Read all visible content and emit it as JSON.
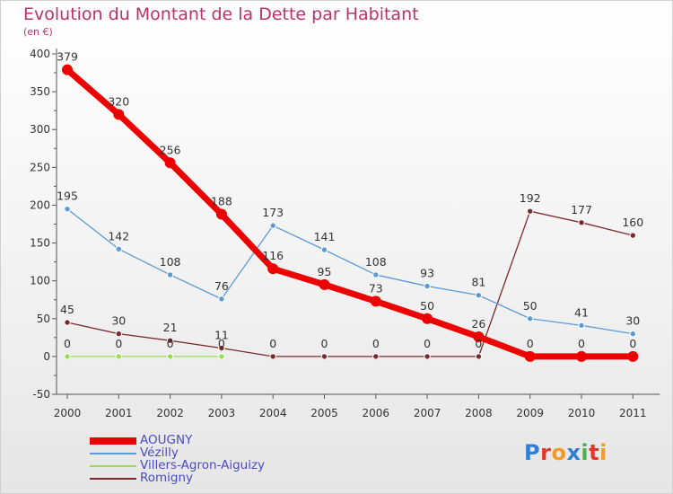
{
  "title": "Evolution du Montant de la Dette par Habitant",
  "subtitle": "(en €)",
  "logo": {
    "text": "Proxiti",
    "letters": [
      {
        "ch": "P",
        "color": "#2f7fd6"
      },
      {
        "ch": "r",
        "color": "#e8342b"
      },
      {
        "ch": "o",
        "color": "#f59a23"
      },
      {
        "ch": "x",
        "color": "#2f7fd6"
      },
      {
        "ch": "i",
        "color": "#47b34a"
      },
      {
        "ch": "t",
        "color": "#e8342b"
      },
      {
        "ch": "i",
        "color": "#f59a23"
      }
    ]
  },
  "chart_data": {
    "type": "line",
    "categories": [
      "2000",
      "2001",
      "2002",
      "2003",
      "2004",
      "2005",
      "2006",
      "2007",
      "2008",
      "2009",
      "2010",
      "2011"
    ],
    "ylim": [
      -50,
      400
    ],
    "yticks": [
      -50,
      0,
      50,
      100,
      150,
      200,
      250,
      300,
      350,
      400
    ],
    "grid": false,
    "legend_position": "bottom-left",
    "series": [
      {
        "name": "Villers-Agron-Aiguizy",
        "color": "#99dd55",
        "values": [
          0,
          0,
          0,
          0,
          null,
          null,
          null,
          null,
          null,
          null,
          null,
          null
        ],
        "labels": [
          "0",
          "0",
          "0",
          "0",
          null,
          null,
          null,
          null,
          null,
          null,
          null,
          null
        ]
      },
      {
        "name": "Romigny",
        "color": "#7a2a2a",
        "values": [
          45,
          30,
          21,
          11,
          0,
          0,
          0,
          0,
          0,
          192,
          177,
          160
        ],
        "labels": [
          "45",
          "30",
          "21",
          "11",
          "0",
          "0",
          "0",
          "0",
          "0",
          "192",
          "177",
          "160"
        ]
      },
      {
        "name": "Vézilly",
        "color": "#5b9bd5",
        "values": [
          195,
          142,
          108,
          76,
          173,
          141,
          108,
          93,
          81,
          50,
          41,
          30
        ],
        "labels": [
          "195",
          "142",
          "108",
          "76",
          "173",
          "141",
          "108",
          "93",
          "81",
          "50",
          "41",
          "30"
        ]
      },
      {
        "name": "AOUGNY",
        "color": "#ee0000",
        "values": [
          379,
          320,
          256,
          188,
          116,
          95,
          73,
          50,
          26,
          0,
          0,
          0
        ],
        "labels": [
          "379",
          "320",
          "256",
          "188",
          "116",
          "95",
          "73",
          "50",
          "26",
          "0",
          "0",
          "0"
        ]
      }
    ],
    "legend": [
      {
        "name": "AOUGNY",
        "color": "#ee0000"
      },
      {
        "name": "Vézilly",
        "color": "#5b9bd5"
      },
      {
        "name": "Villers-Agron-Aiguizy",
        "color": "#99dd55"
      },
      {
        "name": "Romigny",
        "color": "#7a2a2a"
      }
    ]
  }
}
